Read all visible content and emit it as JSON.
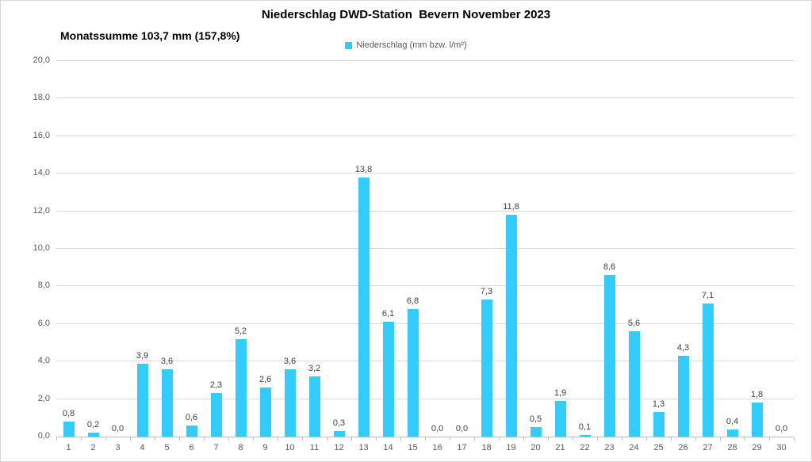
{
  "header": {
    "title": "Niederschlag DWD-Station  Bevern November 2023",
    "subtitle": "Monatssumme 103,7 mm (157,8%)"
  },
  "legend": {
    "label": "Niederschlag (mm bzw. l/m²)",
    "swatch_color": "#33ccff"
  },
  "colors": {
    "bar": "#33ccff",
    "gridline": "#d9d9d9",
    "axis": "#bfbfbf",
    "axis_label": "#595959",
    "data_label": "#404040"
  },
  "chart_data": {
    "type": "bar",
    "title": "Niederschlag DWD-Station  Bevern November 2023",
    "subtitle": "Monatssumme 103,7 mm (157,8%)",
    "legend_entries": [
      "Niederschlag (mm bzw. l/m²)"
    ],
    "legend_position": "top-center",
    "grid": true,
    "xlabel": "",
    "ylabel": "",
    "ylim": [
      0,
      20
    ],
    "categories": [
      "1",
      "2",
      "3",
      "4",
      "5",
      "6",
      "7",
      "8",
      "9",
      "10",
      "11",
      "12",
      "13",
      "14",
      "15",
      "16",
      "17",
      "18",
      "19",
      "20",
      "21",
      "22",
      "23",
      "24",
      "25",
      "26",
      "27",
      "28",
      "29",
      "30"
    ],
    "values": [
      0.8,
      0.2,
      0.0,
      3.9,
      3.6,
      0.6,
      2.3,
      5.2,
      2.6,
      3.6,
      3.2,
      0.3,
      13.8,
      6.1,
      6.8,
      0.0,
      0.0,
      7.3,
      11.8,
      0.5,
      1.9,
      0.1,
      8.6,
      5.6,
      1.3,
      4.3,
      7.1,
      0.4,
      1.8,
      0.0
    ],
    "value_labels": [
      "0,8",
      "0,2",
      "0,0",
      "3,9",
      "3,6",
      "0,6",
      "2,3",
      "5,2",
      "2,6",
      "3,6",
      "3,2",
      "0,3",
      "13,8",
      "6,1",
      "6,8",
      "0,0",
      "0,0",
      "7,3",
      "11,8",
      "0,5",
      "1,9",
      "0,1",
      "8,6",
      "5,6",
      "1,3",
      "4,3",
      "7,1",
      "0,4",
      "1,8",
      "0,0"
    ],
    "y_tick_values": [
      0,
      2,
      4,
      6,
      8,
      10,
      12,
      14,
      16,
      18,
      20
    ],
    "y_tick_labels": [
      "0,0",
      "2,0",
      "4,0",
      "6,0",
      "8,0",
      "10,0",
      "12,0",
      "14,0",
      "16,0",
      "18,0",
      "20,0"
    ]
  }
}
